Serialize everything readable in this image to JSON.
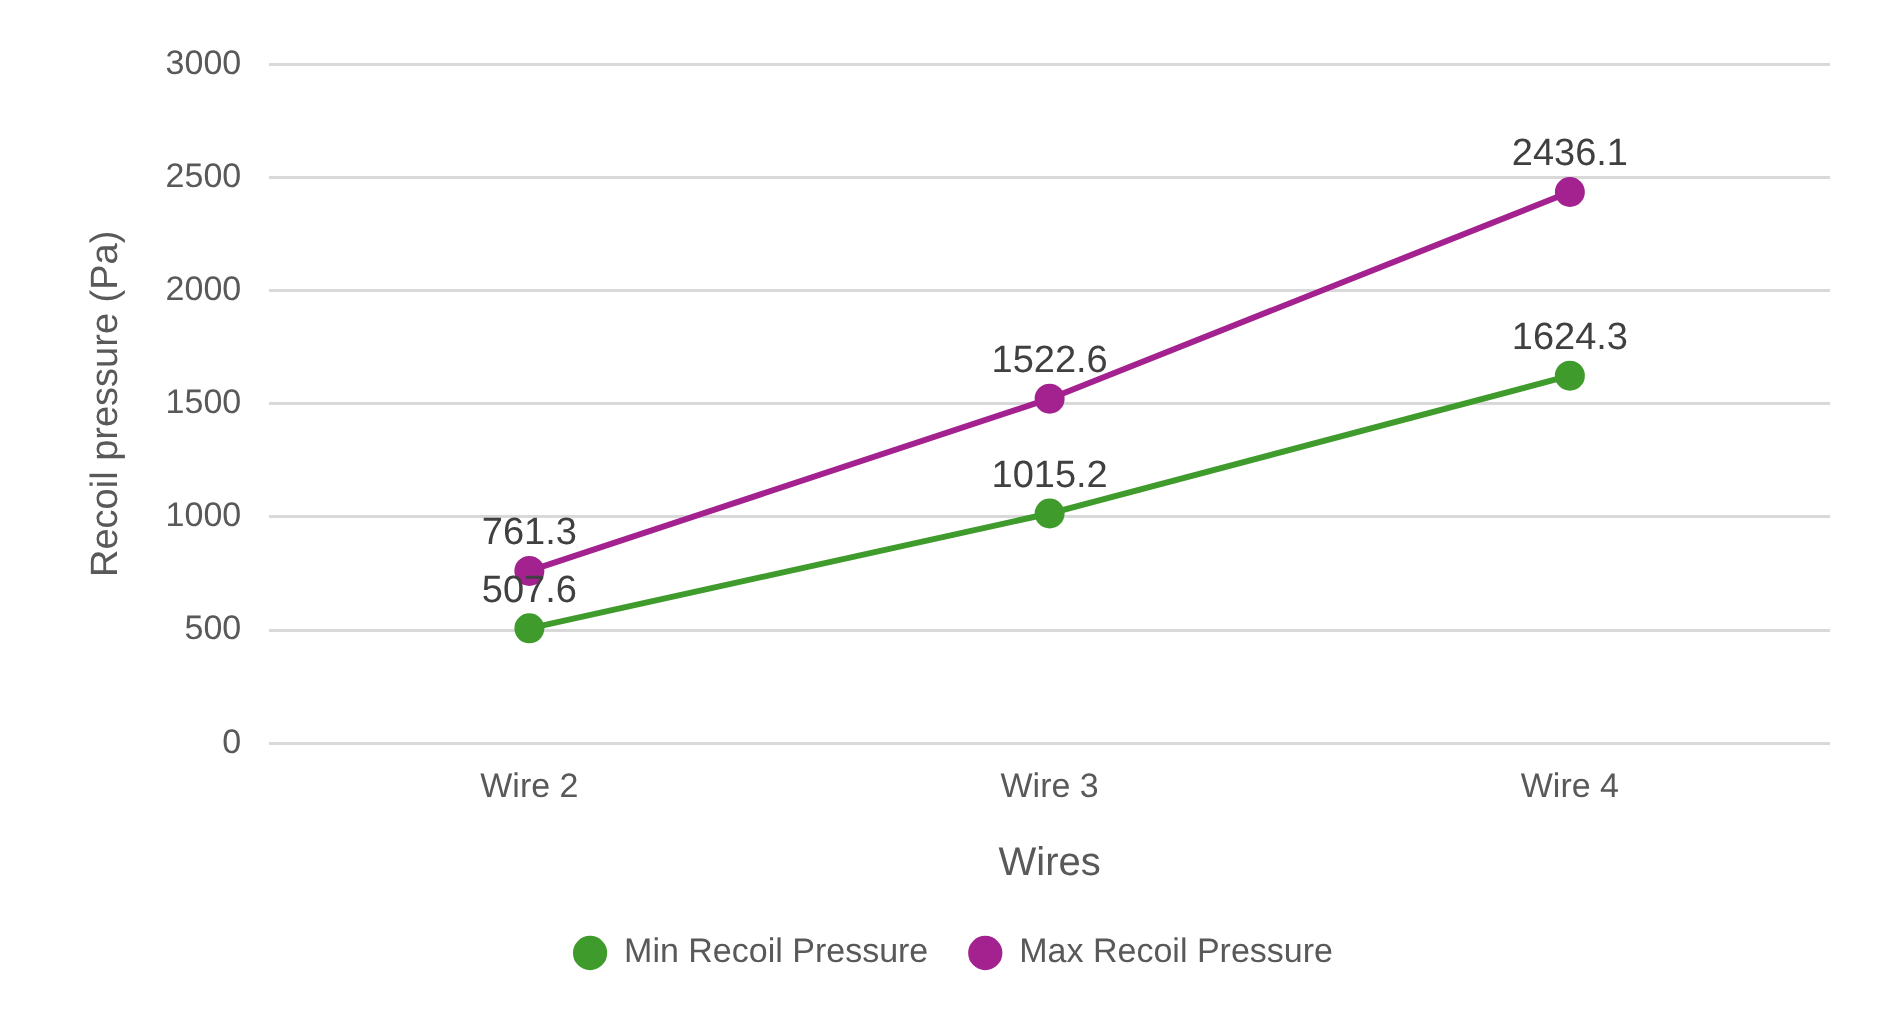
{
  "chart_data": {
    "type": "line",
    "xlabel": "Wires",
    "ylabel": "Recoil pressure (Pa)",
    "categories": [
      "Wire 2",
      "Wire 3",
      "Wire 4"
    ],
    "series": [
      {
        "name": "Min Recoil Pressure",
        "color": "#3f9c2c",
        "values": [
          507.6,
          1015.2,
          1624.3
        ]
      },
      {
        "name": "Max Recoil Pressure",
        "color": "#a3228f",
        "values": [
          761.3,
          1522.6,
          2436.1
        ]
      }
    ],
    "ylim": [
      0,
      3000
    ],
    "yticks": [
      0,
      500,
      1000,
      1500,
      2000,
      2500,
      3000
    ],
    "grid": "y",
    "legend": "bottom",
    "marker": "circle",
    "line_style": "solid",
    "data_labels": true
  }
}
